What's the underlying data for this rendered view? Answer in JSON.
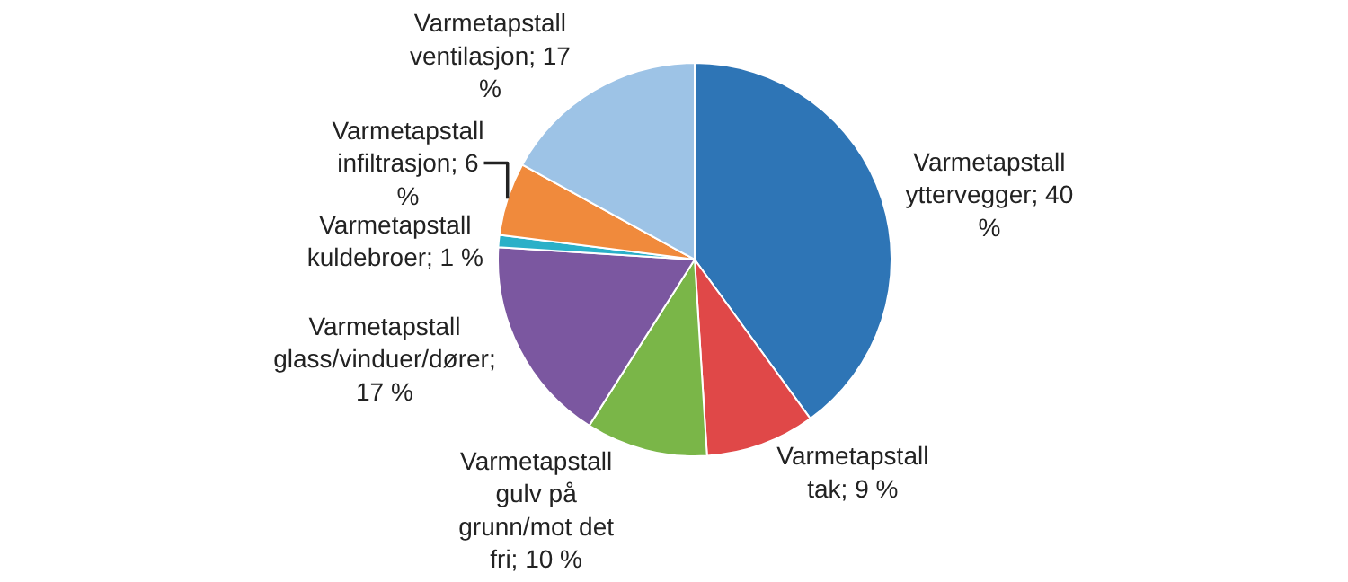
{
  "chart_data": {
    "type": "pie",
    "categories": [
      "Varmetapstall yttervegger; 40 %",
      "Varmetapstall tak; 9 %",
      "Varmetapstall gulv på grunn/mot det fri; 10 %",
      "Varmetapstall glass/vinduer/dører; 17 %",
      "Varmetapstall kuldebroer; 1 %",
      "Varmetapstall infiltrasjon; 6 %",
      "Varmetapstall ventilasjon; 17 %"
    ],
    "values": [
      40,
      9,
      10,
      17,
      1,
      6,
      17
    ],
    "colors": [
      "#2e75b6",
      "#e04848",
      "#7ab648",
      "#7b57a0",
      "#2ab0c8",
      "#f08a3c",
      "#9dc3e6"
    ],
    "legend": false
  }
}
